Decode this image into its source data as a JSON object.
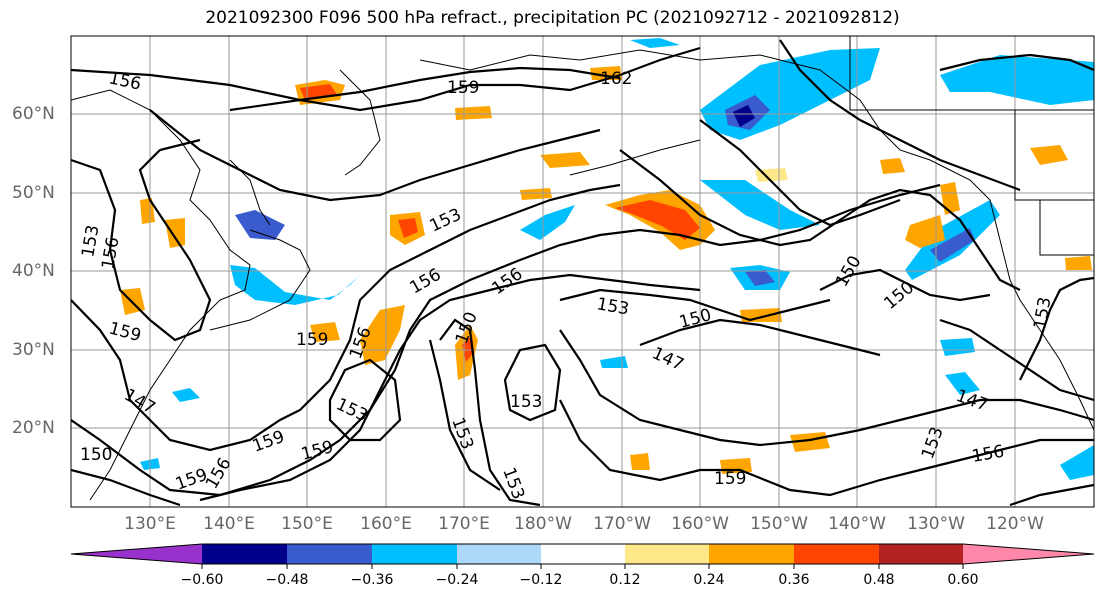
{
  "title": "2021092300 F096 500 hPa refract., precipitation PC (2021092712 - 2021092812)",
  "lat_labels": [
    "60°N",
    "50°N",
    "40°N",
    "30°N",
    "20°N"
  ],
  "lon_labels": [
    "130°E",
    "140°E",
    "150°E",
    "160°E",
    "170°E",
    "180°W",
    "170°W",
    "160°W",
    "150°W",
    "140°W",
    "130°W",
    "120°W"
  ],
  "colorbar": {
    "ticks": [
      "−0.60",
      "−0.48",
      "−0.36",
      "−0.24",
      "−0.12",
      "0.12",
      "0.24",
      "0.36",
      "0.48",
      "0.60"
    ],
    "colors": [
      "#9932cc",
      "#00008b",
      "#3a5bcd",
      "#00bfff",
      "#add8f8",
      "#ffffff",
      "#ffe88a",
      "#ffa500",
      "#ff4500",
      "#b22222",
      "#ff88aa"
    ]
  },
  "contour_labels": [
    "156",
    "159",
    "162",
    "153",
    "153",
    "156",
    "159",
    "156",
    "156",
    "153",
    "150",
    "153",
    "150",
    "147",
    "150",
    "147",
    "153",
    "153",
    "156",
    "147",
    "150",
    "159",
    "159",
    "159",
    "156",
    "153",
    "153",
    "159",
    "156",
    "159",
    "150",
    "153"
  ]
}
